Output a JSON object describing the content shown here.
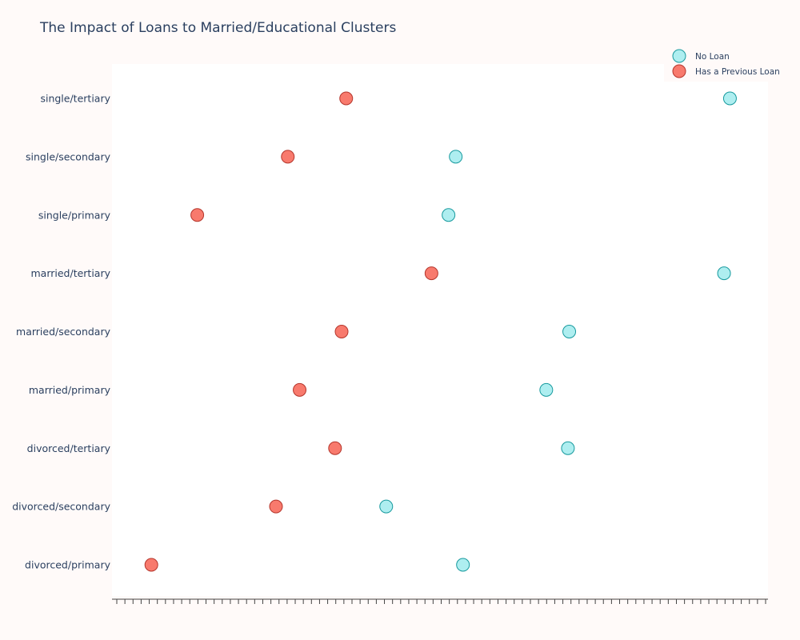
{
  "chart_data": {
    "type": "scatter",
    "title": "The Impact of Loans to Married/Educational Clusters",
    "xlabel": "",
    "ylabel": "",
    "xlim": [
      0,
      100
    ],
    "categories": [
      "divorced/primary",
      "divorced/secondary",
      "divorced/tertiary",
      "married/primary",
      "married/secondary",
      "married/tertiary",
      "single/primary",
      "single/secondary",
      "single/tertiary"
    ],
    "series": [
      {
        "name": "No Loan",
        "color": "#aeeef0",
        "edge": "#179a9e",
        "values": [
          53.5,
          41.8,
          69.5,
          66.2,
          69.7,
          93.3,
          51.3,
          52.4,
          94.2
        ]
      },
      {
        "name": "Has a Previous Loan",
        "color": "#f87a6d",
        "edge": "#b5362c",
        "values": [
          6.0,
          25.0,
          34.0,
          28.6,
          35.0,
          48.7,
          13.0,
          26.8,
          35.7
        ]
      }
    ],
    "legend_position": "top-right",
    "grid": false
  }
}
